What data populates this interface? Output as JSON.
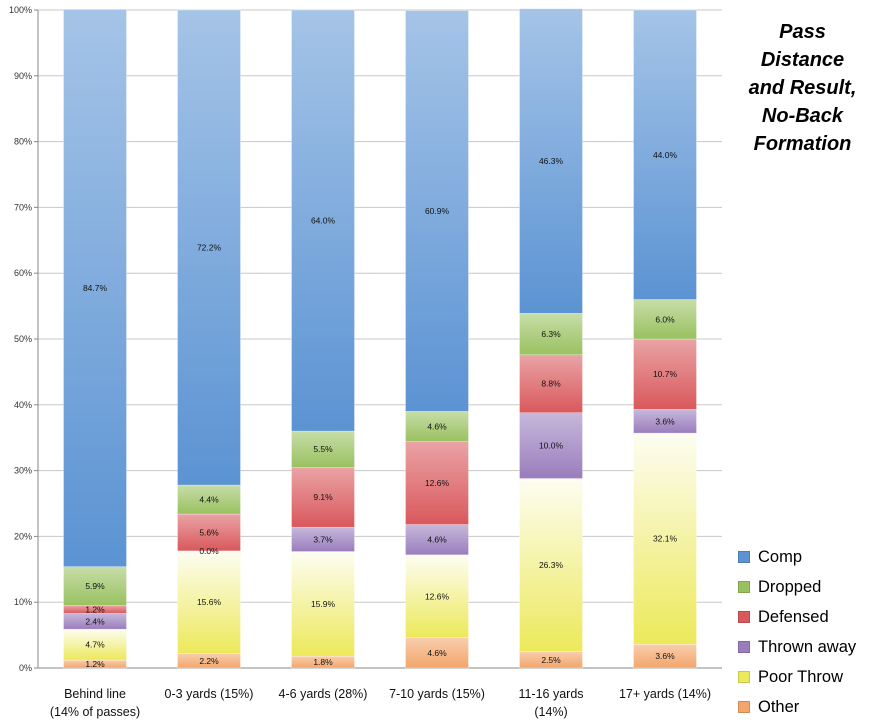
{
  "chart_data": {
    "type": "bar",
    "stacked": true,
    "title": "Pass Distance and Result, No-Back Formation",
    "title_lines": [
      "Pass",
      "Distance",
      "and Result,",
      "No-Back",
      "Formation"
    ],
    "categories": [
      [
        "Behind line",
        "(14% of passes)"
      ],
      [
        "0-3 yards (15%)"
      ],
      [
        "4-6 yards (28%)"
      ],
      [
        "7-10 yards (15%)"
      ],
      [
        "11-16 yards",
        "(14%)"
      ],
      [
        "17+ yards (14%)"
      ]
    ],
    "series": [
      {
        "name": "Other",
        "color": "#f3a56a",
        "values": [
          1.2,
          2.2,
          1.8,
          4.6,
          2.5,
          3.6
        ]
      },
      {
        "name": "Poor Throw",
        "color": "#ece95a",
        "values": [
          4.7,
          15.6,
          15.9,
          12.6,
          26.3,
          32.1
        ]
      },
      {
        "name": "Thrown away",
        "color": "#9a7dbd",
        "values": [
          2.4,
          0.0,
          3.7,
          4.6,
          10.0,
          3.6
        ]
      },
      {
        "name": "Defensed",
        "color": "#d9585c",
        "values": [
          1.2,
          5.6,
          9.1,
          12.6,
          8.8,
          10.7
        ]
      },
      {
        "name": "Dropped",
        "color": "#99c160",
        "values": [
          5.9,
          4.4,
          5.5,
          4.6,
          6.3,
          6.0
        ]
      },
      {
        "name": "Comp",
        "color": "#5b93d3",
        "values": [
          84.7,
          72.2,
          64.0,
          60.9,
          46.3,
          44.0
        ]
      }
    ],
    "legend_order": [
      "Comp",
      "Dropped",
      "Defensed",
      "Thrown away",
      "Poor Throw",
      "Other"
    ],
    "ylim": [
      0,
      100
    ],
    "yticks": [
      0,
      10,
      20,
      30,
      40,
      50,
      60,
      70,
      80,
      90,
      100
    ],
    "ytick_format": "percent",
    "grid": true,
    "legend_position": "bottom-right",
    "xlabel": "",
    "ylabel": ""
  }
}
